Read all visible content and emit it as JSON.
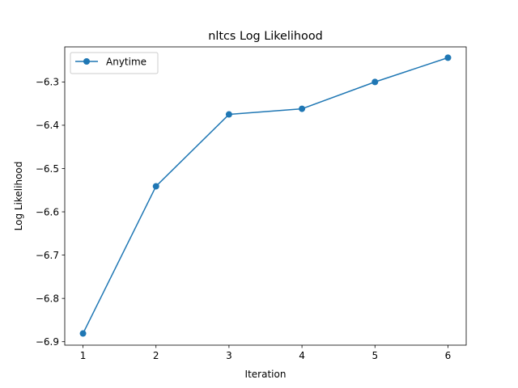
{
  "chart_data": {
    "type": "line",
    "title": "nltcs Log Likelihood",
    "xlabel": "Iteration",
    "ylabel": "Log Likelihood",
    "x": [
      1,
      2,
      3,
      4,
      5,
      6
    ],
    "xlim": [
      0.75,
      6.25
    ],
    "ylim": [
      -6.908,
      -6.219
    ],
    "xticks": [
      1,
      2,
      3,
      4,
      5,
      6
    ],
    "yticks": [
      -6.9,
      -6.8,
      -6.7,
      -6.6,
      -6.5,
      -6.4,
      -6.3
    ],
    "yticklabels": [
      "−6.9",
      "−6.8",
      "−6.7",
      "−6.6",
      "−6.5",
      "−6.4",
      "−6.3"
    ],
    "grid": false,
    "legend_position": "top-left",
    "series": [
      {
        "name": "Anytime",
        "color": "#1f77b4",
        "marker": "circle",
        "values": [
          -6.881,
          -6.541,
          -6.375,
          -6.362,
          -6.3,
          -6.244
        ]
      }
    ]
  }
}
